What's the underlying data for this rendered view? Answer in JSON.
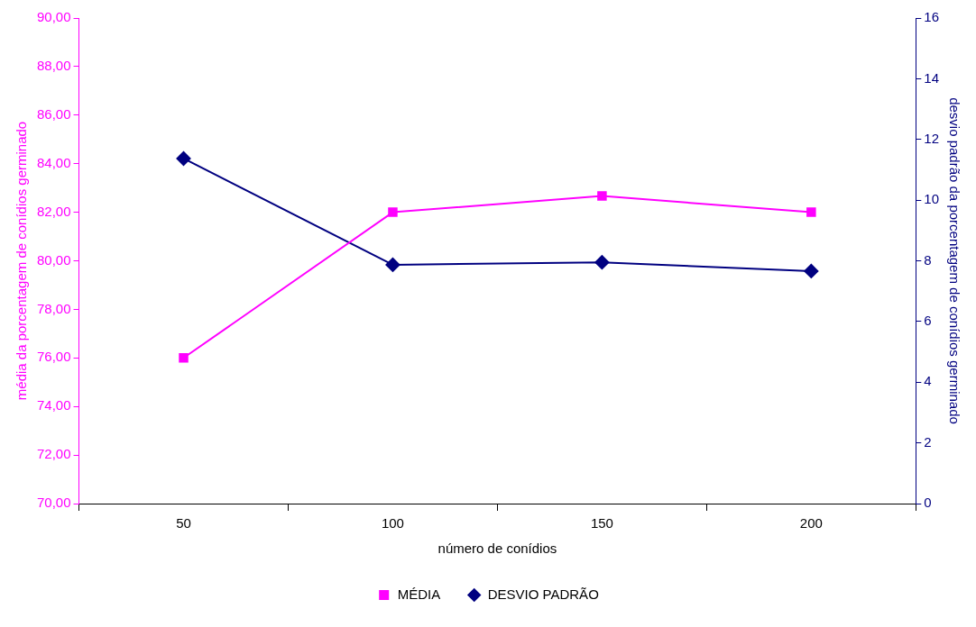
{
  "chart_data": {
    "type": "line",
    "categories": [
      "50",
      "100",
      "150",
      "200"
    ],
    "xlabel": "número de conídios",
    "ylabel": "média da porcentagem de conídios germinado",
    "y2label": "desvio padrão da porcentagem de conídios germinado",
    "series": [
      {
        "name": "MÉDIA",
        "color": "#ff00ff",
        "values": [
          76.0,
          82.0,
          82.67,
          82.0
        ],
        "marker": "square"
      },
      {
        "name": "DESVIO PADRÃO",
        "color": "#000080",
        "values": [
          11.37,
          7.87,
          7.95,
          7.66
        ],
        "marker": "diamond",
        "axis": "y2"
      }
    ],
    "ylim": [
      70,
      90
    ],
    "yticks": [
      {
        "value": 70,
        "label": "70,00"
      },
      {
        "value": 72,
        "label": "72,00"
      },
      {
        "value": 74,
        "label": "74,00"
      },
      {
        "value": 76,
        "label": "76,00"
      },
      {
        "value": 78,
        "label": "78,00"
      },
      {
        "value": 80,
        "label": "80,00"
      },
      {
        "value": 82,
        "label": "82,00"
      },
      {
        "value": 84,
        "label": "84,00"
      },
      {
        "value": 86,
        "label": "86,00"
      },
      {
        "value": 88,
        "label": "88,00"
      },
      {
        "value": 90,
        "label": "90,00"
      }
    ],
    "y2lim": [
      0,
      16
    ],
    "y2ticks": [
      0,
      2,
      4,
      6,
      8,
      10,
      12,
      14,
      16
    ],
    "grid": false,
    "legend": "bottom",
    "line_style": "solid"
  }
}
